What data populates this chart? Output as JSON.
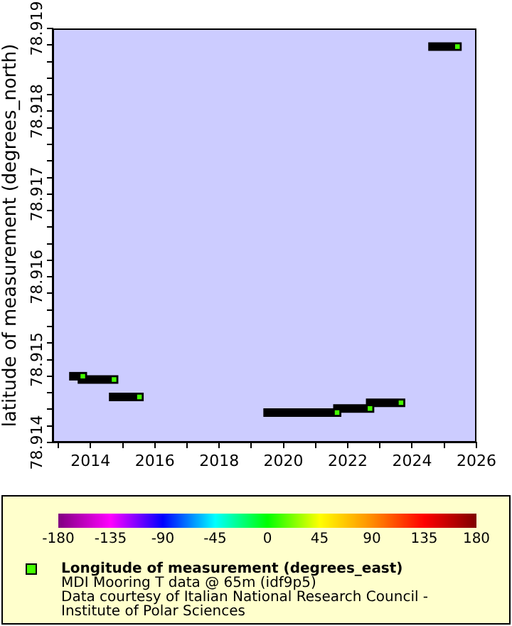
{
  "chart_data": {
    "type": "scatter",
    "ylabel": "latitude of measurement (degrees_north)",
    "xlim": [
      "2012-10-27",
      "2026-01-01"
    ],
    "xticks": [
      {
        "value": "2013",
        "label": null
      },
      "2014",
      {
        "value": "2015",
        "label": null
      },
      "2016",
      {
        "value": "2017",
        "label": null
      },
      "2018",
      {
        "value": "2019",
        "label": null
      },
      "2020",
      {
        "value": "2021",
        "label": null
      },
      "2022",
      {
        "value": "2023",
        "label": null
      },
      "2024",
      {
        "value": "2025",
        "label": null
      },
      "2026"
    ],
    "ylim": [
      78.914,
      78.919
    ],
    "yticks": [
      78.914,
      {
        "value": 78.9142,
        "label": null
      },
      {
        "value": 78.9144,
        "label": null
      },
      {
        "value": 78.9146,
        "label": null
      },
      {
        "value": 78.9148,
        "label": null
      },
      78.915,
      {
        "value": 78.9152,
        "label": null
      },
      {
        "value": 78.9154,
        "label": null
      },
      {
        "value": 78.9156,
        "label": null
      },
      {
        "value": 78.9158,
        "label": null
      },
      78.916,
      {
        "value": 78.9162,
        "label": null
      },
      {
        "value": 78.9164,
        "label": null
      },
      {
        "value": 78.9166,
        "label": null
      },
      {
        "value": 78.9168,
        "label": null
      },
      78.917,
      {
        "value": 78.9172,
        "label": null
      },
      {
        "value": 78.9174,
        "label": null
      },
      {
        "value": 78.9176,
        "label": null
      },
      {
        "value": 78.9178,
        "label": null
      },
      78.918,
      {
        "value": 78.9182,
        "label": null
      },
      {
        "value": 78.9184,
        "label": null
      },
      {
        "value": 78.9186,
        "label": null
      },
      {
        "value": 78.9188,
        "label": null
      },
      78.919
    ],
    "clim": [
      -180,
      180
    ],
    "cticks": [
      -180,
      -135,
      -90,
      -45,
      0,
      45,
      90,
      135,
      180
    ],
    "series": [
      {
        "type": "line",
        "color": "#000000",
        "marker": "none",
        "x": [
          "2013-06-20",
          "2013-10-05"
        ],
        "values": [
          78.9148,
          78.9148
        ]
      },
      {
        "type": "line",
        "color": "#000000",
        "marker": "none",
        "x": [
          "2013-09-25",
          "2014-09-25"
        ],
        "values": [
          78.91476,
          78.91476
        ]
      },
      {
        "type": "line",
        "color": "#000000",
        "marker": "none",
        "x": [
          "2014-09-15",
          "2015-07-10"
        ],
        "values": [
          78.91455,
          78.91455
        ]
      },
      {
        "type": "line",
        "color": "#000000",
        "marker": "none",
        "x": [
          "2019-07-05",
          "2021-09-01"
        ],
        "values": [
          78.91436,
          78.91436
        ]
      },
      {
        "type": "line",
        "color": "#000000",
        "marker": "none",
        "x": [
          "2021-09-05",
          "2022-09-10"
        ],
        "values": [
          78.91441,
          78.91441
        ]
      },
      {
        "type": "line",
        "color": "#000000",
        "marker": "none",
        "x": [
          "2022-09-12",
          "2023-08-28"
        ],
        "values": [
          78.91448,
          78.91448
        ]
      },
      {
        "type": "line",
        "color": "#000000",
        "marker": "none",
        "x": [
          "2024-08-20",
          "2025-05-30"
        ],
        "values": [
          78.91878,
          78.91878
        ]
      },
      {
        "type": "scatter",
        "name": "Longitude of measurement (degrees_east)",
        "marker": "square",
        "x": [
          "2013-10-05",
          "2014-09-25",
          "2015-07-10",
          "2021-09-01",
          "2022-09-10",
          "2023-08-28",
          "2025-05-30"
        ],
        "values": [
          78.9148,
          78.91476,
          78.91455,
          78.91436,
          78.91441,
          78.91448,
          78.91878
        ],
        "cvalues": [
          12,
          12,
          12,
          12,
          12,
          12,
          12
        ]
      }
    ],
    "legend": "bottom",
    "annotations": [
      "MDI Mooring T data @ 65m (idf9p5)",
      "Data courtesy of Italian National Research Council - Institute of Polar Sciences"
    ]
  }
}
